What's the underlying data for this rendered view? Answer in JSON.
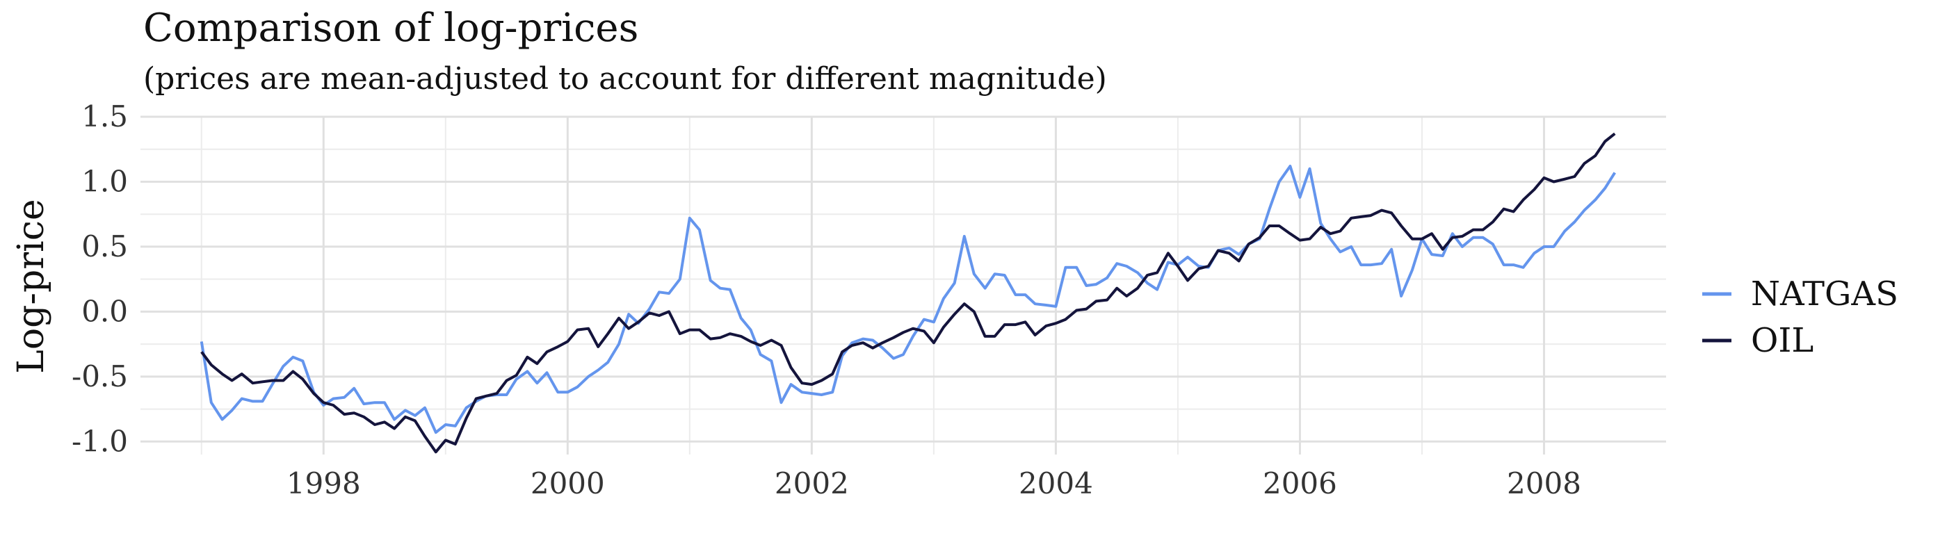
{
  "chart_data": {
    "type": "line",
    "title": "Comparison of log-prices",
    "subtitle": "(prices are mean-adjusted to account for different magnitude)",
    "xlabel": "",
    "ylabel": "Log-price",
    "xlim": [
      1996.5,
      2009.0
    ],
    "ylim": [
      -1.1,
      1.5
    ],
    "x_ticks": [
      1998,
      2000,
      2002,
      2004,
      2006,
      2008
    ],
    "x_tick_labels": [
      "1998",
      "2000",
      "2002",
      "2004",
      "2006",
      "2008"
    ],
    "y_ticks": [
      -1.0,
      -0.5,
      0.0,
      0.5,
      1.0,
      1.5
    ],
    "y_tick_labels": [
      "-1.0",
      "-0.5",
      "0.0",
      "0.5",
      "1.0",
      "1.5"
    ],
    "grid": true,
    "legend_position": "right",
    "series": [
      {
        "name": "NATGAS",
        "color": "#6495ED",
        "points": [
          [
            1997.0,
            -0.23
          ],
          [
            1997.08,
            -0.7
          ],
          [
            1997.17,
            -0.83
          ],
          [
            1997.25,
            -0.76
          ],
          [
            1997.33,
            -0.67
          ],
          [
            1997.42,
            -0.69
          ],
          [
            1997.5,
            -0.69
          ],
          [
            1997.58,
            -0.56
          ],
          [
            1997.67,
            -0.42
          ],
          [
            1997.75,
            -0.35
          ],
          [
            1997.83,
            -0.38
          ],
          [
            1997.92,
            -0.62
          ],
          [
            1998.0,
            -0.72
          ],
          [
            1998.08,
            -0.67
          ],
          [
            1998.17,
            -0.66
          ],
          [
            1998.25,
            -0.59
          ],
          [
            1998.33,
            -0.71
          ],
          [
            1998.42,
            -0.7
          ],
          [
            1998.5,
            -0.7
          ],
          [
            1998.58,
            -0.83
          ],
          [
            1998.67,
            -0.76
          ],
          [
            1998.75,
            -0.8
          ],
          [
            1998.83,
            -0.74
          ],
          [
            1998.92,
            -0.93
          ],
          [
            1999.0,
            -0.87
          ],
          [
            1999.08,
            -0.88
          ],
          [
            1999.17,
            -0.74
          ],
          [
            1999.25,
            -0.69
          ],
          [
            1999.33,
            -0.65
          ],
          [
            1999.42,
            -0.64
          ],
          [
            1999.5,
            -0.64
          ],
          [
            1999.58,
            -0.52
          ],
          [
            1999.67,
            -0.46
          ],
          [
            1999.75,
            -0.55
          ],
          [
            1999.83,
            -0.47
          ],
          [
            1999.92,
            -0.62
          ],
          [
            2000.0,
            -0.62
          ],
          [
            2000.08,
            -0.58
          ],
          [
            2000.17,
            -0.5
          ],
          [
            2000.25,
            -0.45
          ],
          [
            2000.33,
            -0.39
          ],
          [
            2000.42,
            -0.25
          ],
          [
            2000.5,
            -0.02
          ],
          [
            2000.58,
            -0.09
          ],
          [
            2000.67,
            0.02
          ],
          [
            2000.75,
            0.15
          ],
          [
            2000.83,
            0.14
          ],
          [
            2000.92,
            0.25
          ],
          [
            2001.0,
            0.72
          ],
          [
            2001.08,
            0.63
          ],
          [
            2001.17,
            0.24
          ],
          [
            2001.25,
            0.18
          ],
          [
            2001.33,
            0.17
          ],
          [
            2001.42,
            -0.05
          ],
          [
            2001.5,
            -0.14
          ],
          [
            2001.58,
            -0.33
          ],
          [
            2001.67,
            -0.38
          ],
          [
            2001.75,
            -0.7
          ],
          [
            2001.83,
            -0.56
          ],
          [
            2001.92,
            -0.62
          ],
          [
            2002.0,
            -0.63
          ],
          [
            2002.08,
            -0.64
          ],
          [
            2002.17,
            -0.62
          ],
          [
            2002.25,
            -0.34
          ],
          [
            2002.33,
            -0.24
          ],
          [
            2002.42,
            -0.21
          ],
          [
            2002.5,
            -0.22
          ],
          [
            2002.58,
            -0.28
          ],
          [
            2002.67,
            -0.36
          ],
          [
            2002.75,
            -0.33
          ],
          [
            2002.83,
            -0.19
          ],
          [
            2002.92,
            -0.06
          ],
          [
            2003.0,
            -0.08
          ],
          [
            2003.08,
            0.1
          ],
          [
            2003.17,
            0.22
          ],
          [
            2003.25,
            0.58
          ],
          [
            2003.33,
            0.29
          ],
          [
            2003.42,
            0.18
          ],
          [
            2003.5,
            0.29
          ],
          [
            2003.58,
            0.28
          ],
          [
            2003.67,
            0.13
          ],
          [
            2003.75,
            0.13
          ],
          [
            2003.83,
            0.06
          ],
          [
            2003.92,
            0.05
          ],
          [
            2004.0,
            0.04
          ],
          [
            2004.08,
            0.34
          ],
          [
            2004.17,
            0.34
          ],
          [
            2004.25,
            0.2
          ],
          [
            2004.33,
            0.21
          ],
          [
            2004.42,
            0.26
          ],
          [
            2004.5,
            0.37
          ],
          [
            2004.58,
            0.35
          ],
          [
            2004.67,
            0.3
          ],
          [
            2004.75,
            0.22
          ],
          [
            2004.83,
            0.17
          ],
          [
            2004.92,
            0.38
          ],
          [
            2005.0,
            0.36
          ],
          [
            2005.08,
            0.42
          ],
          [
            2005.17,
            0.35
          ],
          [
            2005.25,
            0.34
          ],
          [
            2005.33,
            0.47
          ],
          [
            2005.42,
            0.49
          ],
          [
            2005.5,
            0.44
          ],
          [
            2005.58,
            0.52
          ],
          [
            2005.67,
            0.56
          ],
          [
            2005.75,
            0.79
          ],
          [
            2005.83,
            1.0
          ],
          [
            2005.92,
            1.12
          ],
          [
            2006.0,
            0.88
          ],
          [
            2006.08,
            1.1
          ],
          [
            2006.17,
            0.68
          ],
          [
            2006.25,
            0.56
          ],
          [
            2006.33,
            0.46
          ],
          [
            2006.42,
            0.5
          ],
          [
            2006.5,
            0.36
          ],
          [
            2006.58,
            0.36
          ],
          [
            2006.67,
            0.37
          ],
          [
            2006.75,
            0.48
          ],
          [
            2006.83,
            0.12
          ],
          [
            2006.92,
            0.32
          ],
          [
            2007.0,
            0.56
          ],
          [
            2007.08,
            0.44
          ],
          [
            2007.17,
            0.43
          ],
          [
            2007.25,
            0.6
          ],
          [
            2007.33,
            0.5
          ],
          [
            2007.42,
            0.57
          ],
          [
            2007.5,
            0.57
          ],
          [
            2007.58,
            0.52
          ],
          [
            2007.67,
            0.36
          ],
          [
            2007.75,
            0.36
          ],
          [
            2007.83,
            0.34
          ],
          [
            2007.92,
            0.45
          ],
          [
            2008.0,
            0.5
          ],
          [
            2008.08,
            0.5
          ],
          [
            2008.17,
            0.62
          ],
          [
            2008.25,
            0.69
          ],
          [
            2008.33,
            0.78
          ],
          [
            2008.42,
            0.86
          ],
          [
            2008.5,
            0.95
          ],
          [
            2008.58,
            1.07
          ]
        ]
      },
      {
        "name": "OIL",
        "color": "#14143C",
        "points": [
          [
            1997.0,
            -0.31
          ],
          [
            1997.08,
            -0.41
          ],
          [
            1997.17,
            -0.48
          ],
          [
            1997.25,
            -0.53
          ],
          [
            1997.33,
            -0.48
          ],
          [
            1997.42,
            -0.55
          ],
          [
            1997.5,
            -0.54
          ],
          [
            1997.58,
            -0.53
          ],
          [
            1997.67,
            -0.53
          ],
          [
            1997.75,
            -0.46
          ],
          [
            1997.83,
            -0.52
          ],
          [
            1997.92,
            -0.63
          ],
          [
            1998.0,
            -0.7
          ],
          [
            1998.08,
            -0.72
          ],
          [
            1998.17,
            -0.79
          ],
          [
            1998.25,
            -0.78
          ],
          [
            1998.33,
            -0.81
          ],
          [
            1998.42,
            -0.87
          ],
          [
            1998.5,
            -0.85
          ],
          [
            1998.58,
            -0.9
          ],
          [
            1998.67,
            -0.81
          ],
          [
            1998.75,
            -0.84
          ],
          [
            1998.83,
            -0.96
          ],
          [
            1998.92,
            -1.08
          ],
          [
            1999.0,
            -0.99
          ],
          [
            1999.08,
            -1.02
          ],
          [
            1999.17,
            -0.82
          ],
          [
            1999.25,
            -0.67
          ],
          [
            1999.33,
            -0.65
          ],
          [
            1999.42,
            -0.63
          ],
          [
            1999.5,
            -0.53
          ],
          [
            1999.58,
            -0.49
          ],
          [
            1999.67,
            -0.35
          ],
          [
            1999.75,
            -0.4
          ],
          [
            1999.83,
            -0.31
          ],
          [
            1999.92,
            -0.27
          ],
          [
            2000.0,
            -0.23
          ],
          [
            2000.08,
            -0.14
          ],
          [
            2000.17,
            -0.13
          ],
          [
            2000.25,
            -0.27
          ],
          [
            2000.33,
            -0.17
          ],
          [
            2000.42,
            -0.05
          ],
          [
            2000.5,
            -0.13
          ],
          [
            2000.58,
            -0.08
          ],
          [
            2000.67,
            -0.01
          ],
          [
            2000.75,
            -0.03
          ],
          [
            2000.83,
            0.0
          ],
          [
            2000.92,
            -0.17
          ],
          [
            2001.0,
            -0.14
          ],
          [
            2001.08,
            -0.14
          ],
          [
            2001.17,
            -0.21
          ],
          [
            2001.25,
            -0.2
          ],
          [
            2001.33,
            -0.17
          ],
          [
            2001.42,
            -0.19
          ],
          [
            2001.5,
            -0.23
          ],
          [
            2001.58,
            -0.26
          ],
          [
            2001.67,
            -0.22
          ],
          [
            2001.75,
            -0.26
          ],
          [
            2001.83,
            -0.43
          ],
          [
            2001.92,
            -0.55
          ],
          [
            2002.0,
            -0.56
          ],
          [
            2002.08,
            -0.53
          ],
          [
            2002.17,
            -0.48
          ],
          [
            2002.25,
            -0.31
          ],
          [
            2002.33,
            -0.26
          ],
          [
            2002.42,
            -0.24
          ],
          [
            2002.5,
            -0.28
          ],
          [
            2002.58,
            -0.24
          ],
          [
            2002.67,
            -0.2
          ],
          [
            2002.75,
            -0.16
          ],
          [
            2002.83,
            -0.13
          ],
          [
            2002.92,
            -0.15
          ],
          [
            2003.0,
            -0.24
          ],
          [
            2003.08,
            -0.12
          ],
          [
            2003.17,
            -0.02
          ],
          [
            2003.25,
            0.06
          ],
          [
            2003.33,
            0.0
          ],
          [
            2003.42,
            -0.19
          ],
          [
            2003.5,
            -0.19
          ],
          [
            2003.58,
            -0.1
          ],
          [
            2003.67,
            -0.1
          ],
          [
            2003.75,
            -0.08
          ],
          [
            2003.83,
            -0.18
          ],
          [
            2003.92,
            -0.11
          ],
          [
            2004.0,
            -0.09
          ],
          [
            2004.08,
            -0.06
          ],
          [
            2004.17,
            0.01
          ],
          [
            2004.25,
            0.02
          ],
          [
            2004.33,
            0.08
          ],
          [
            2004.42,
            0.09
          ],
          [
            2004.5,
            0.18
          ],
          [
            2004.58,
            0.12
          ],
          [
            2004.67,
            0.18
          ],
          [
            2004.75,
            0.28
          ],
          [
            2004.83,
            0.3
          ],
          [
            2004.92,
            0.45
          ],
          [
            2005.0,
            0.35
          ],
          [
            2005.08,
            0.24
          ],
          [
            2005.17,
            0.33
          ],
          [
            2005.25,
            0.35
          ],
          [
            2005.33,
            0.47
          ],
          [
            2005.42,
            0.45
          ],
          [
            2005.5,
            0.39
          ],
          [
            2005.58,
            0.52
          ],
          [
            2005.67,
            0.57
          ],
          [
            2005.75,
            0.66
          ],
          [
            2005.83,
            0.66
          ],
          [
            2005.92,
            0.6
          ],
          [
            2006.0,
            0.55
          ],
          [
            2006.08,
            0.56
          ],
          [
            2006.17,
            0.65
          ],
          [
            2006.25,
            0.6
          ],
          [
            2006.33,
            0.62
          ],
          [
            2006.42,
            0.72
          ],
          [
            2006.5,
            0.73
          ],
          [
            2006.58,
            0.74
          ],
          [
            2006.67,
            0.78
          ],
          [
            2006.75,
            0.76
          ],
          [
            2006.83,
            0.66
          ],
          [
            2006.92,
            0.56
          ],
          [
            2007.0,
            0.56
          ],
          [
            2007.08,
            0.6
          ],
          [
            2007.17,
            0.48
          ],
          [
            2007.25,
            0.57
          ],
          [
            2007.33,
            0.58
          ],
          [
            2007.42,
            0.63
          ],
          [
            2007.5,
            0.63
          ],
          [
            2007.58,
            0.69
          ],
          [
            2007.67,
            0.79
          ],
          [
            2007.75,
            0.77
          ],
          [
            2007.83,
            0.86
          ],
          [
            2007.92,
            0.94
          ],
          [
            2008.0,
            1.03
          ],
          [
            2008.08,
            1.0
          ],
          [
            2008.17,
            1.02
          ],
          [
            2008.25,
            1.04
          ],
          [
            2008.33,
            1.14
          ],
          [
            2008.42,
            1.2
          ],
          [
            2008.5,
            1.31
          ],
          [
            2008.58,
            1.37
          ]
        ]
      }
    ]
  }
}
